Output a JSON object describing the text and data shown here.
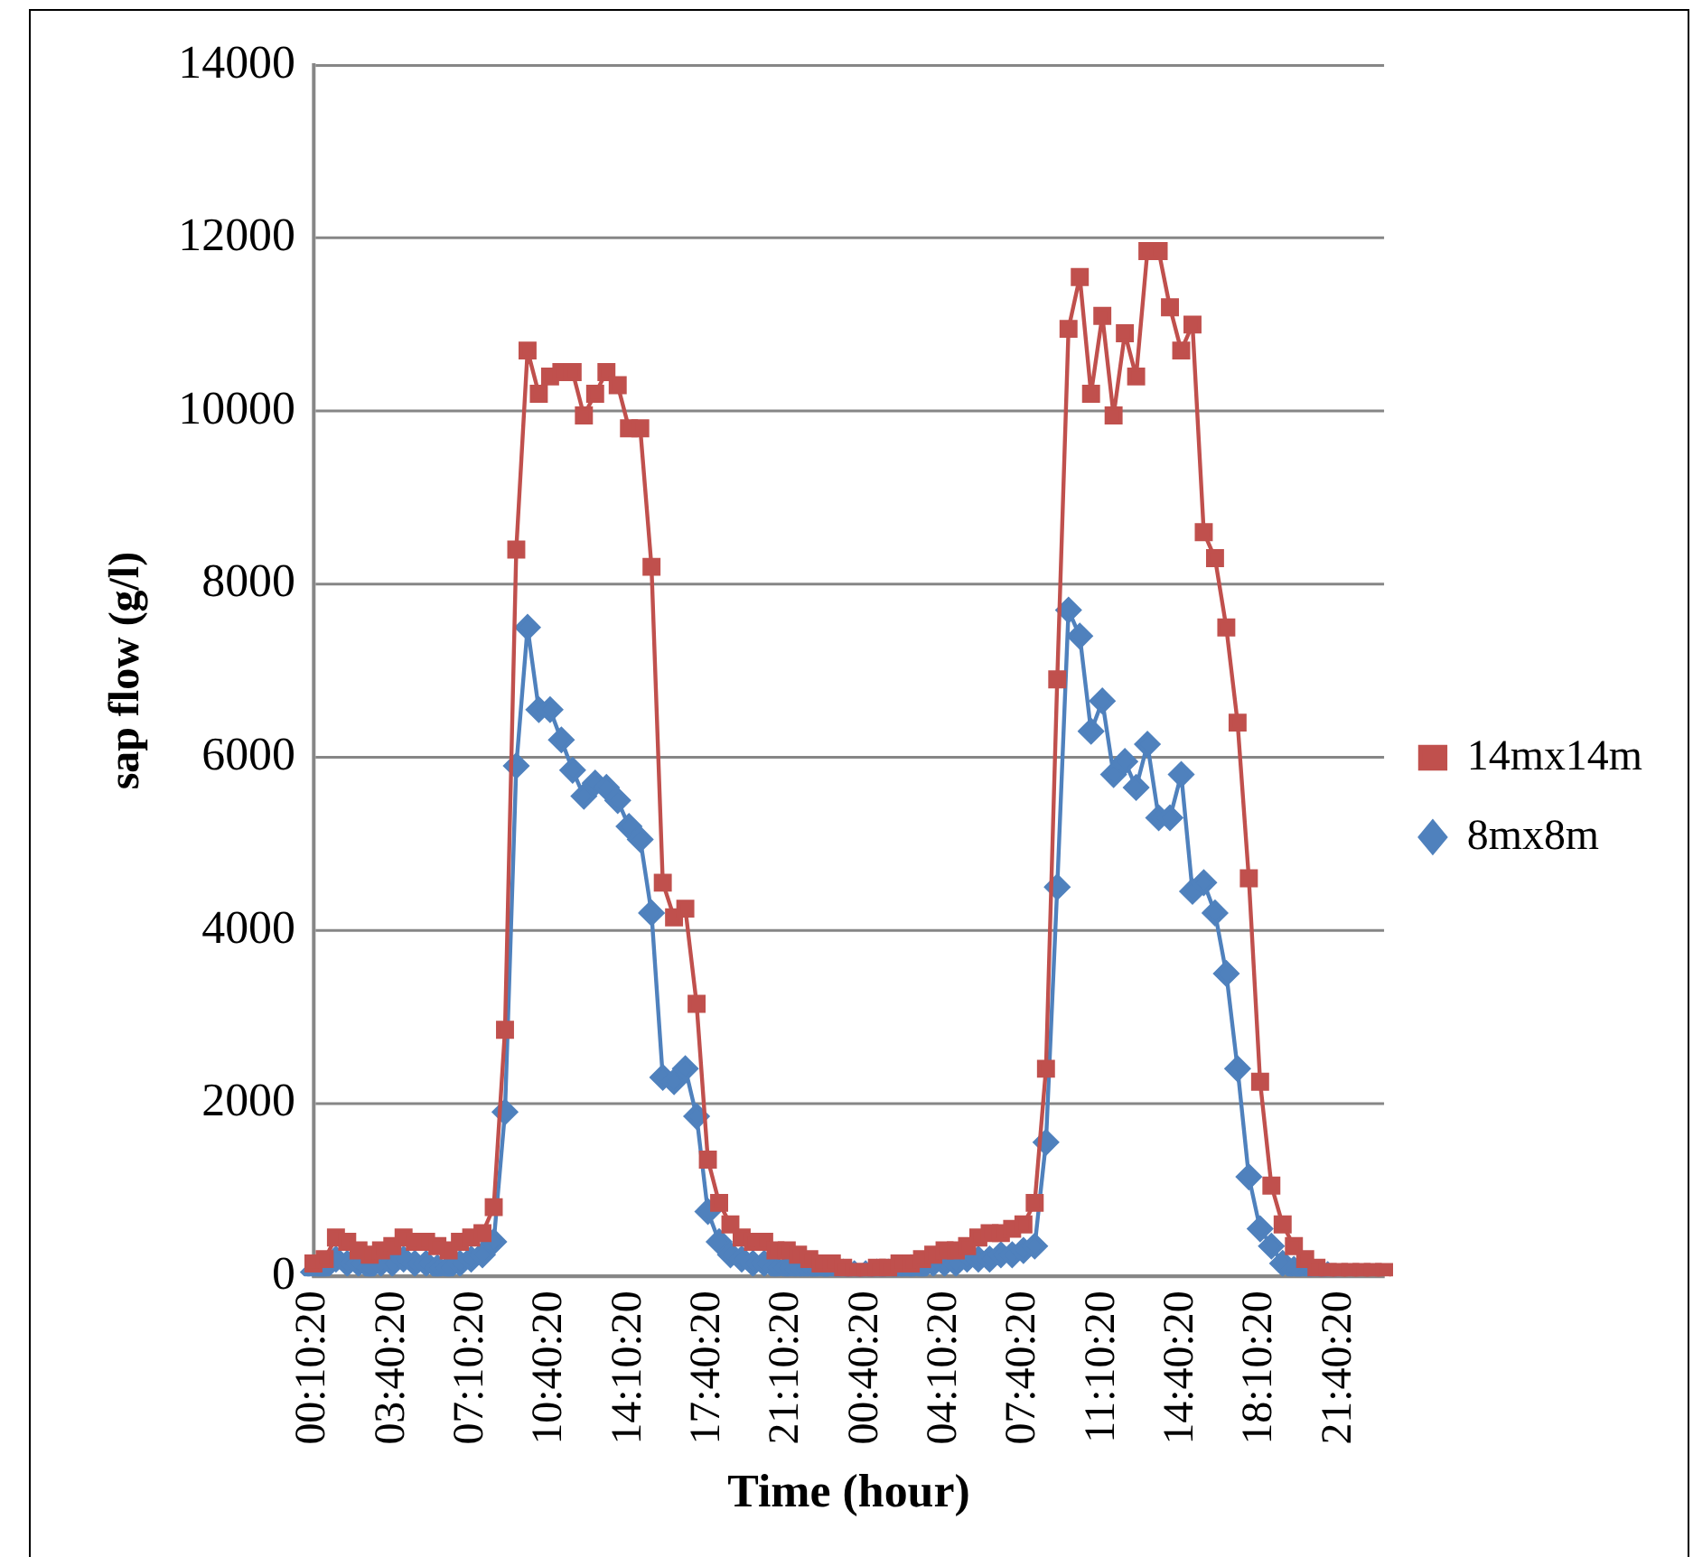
{
  "chart_data": {
    "type": "line",
    "xlabel": "Time (hour)",
    "ylabel": "sap flow (g/l)",
    "categories": [
      "00:10:20",
      null,
      null,
      null,
      null,
      null,
      null,
      "03:40:20",
      null,
      null,
      null,
      null,
      null,
      null,
      "07:10:20",
      null,
      null,
      null,
      null,
      null,
      null,
      "10:40:20",
      null,
      null,
      null,
      null,
      null,
      null,
      "14:10:20",
      null,
      null,
      null,
      null,
      null,
      null,
      "17:40:20",
      null,
      null,
      null,
      null,
      null,
      null,
      "21:10:20",
      null,
      null,
      null,
      null,
      null,
      null,
      "00:40:20",
      null,
      null,
      null,
      null,
      null,
      null,
      "04:10:20",
      null,
      null,
      null,
      null,
      null,
      null,
      "07:40:20",
      null,
      null,
      null,
      null,
      null,
      null,
      "11:10:20",
      null,
      null,
      null,
      null,
      null,
      null,
      "14:40:20",
      null,
      null,
      null,
      null,
      null,
      null,
      "18:10:20",
      null,
      null,
      null,
      null,
      null,
      null,
      "21:40:20",
      null,
      null,
      null,
      null
    ],
    "series": [
      {
        "name": "14mx14m",
        "color": "#c0504d",
        "marker": "square",
        "values": [
          150,
          200,
          450,
          400,
          300,
          250,
          300,
          350,
          450,
          400,
          400,
          350,
          300,
          400,
          450,
          500,
          800,
          2850,
          8400,
          10700,
          10200,
          10400,
          10450,
          10450,
          9950,
          10200,
          10450,
          10300,
          9800,
          9800,
          8200,
          4550,
          4150,
          4250,
          3150,
          1350,
          850,
          600,
          450,
          400,
          400,
          300,
          300,
          250,
          200,
          150,
          150,
          100,
          50,
          50,
          100,
          100,
          150,
          150,
          200,
          250,
          300,
          300,
          350,
          450,
          500,
          500,
          550,
          600,
          850,
          2400,
          6900,
          10950,
          11550,
          10200,
          11100,
          9950,
          10900,
          10400,
          11850,
          11850,
          11200,
          10700,
          11000,
          8600,
          8300,
          7500,
          6400,
          4600,
          2250,
          1050,
          600,
          350,
          200,
          100,
          50,
          50,
          50,
          50,
          50,
          50
        ]
      },
      {
        "name": "8mx8m",
        "color": "#4f81bd",
        "marker": "diamond",
        "values": [
          50,
          100,
          200,
          150,
          150,
          100,
          150,
          150,
          200,
          150,
          150,
          100,
          100,
          150,
          200,
          250,
          400,
          1900,
          5900,
          7500,
          6550,
          6550,
          6200,
          5850,
          5550,
          5700,
          5650,
          5500,
          5200,
          5050,
          4200,
          2300,
          2250,
          2400,
          1850,
          750,
          400,
          250,
          200,
          150,
          150,
          100,
          100,
          80,
          80,
          60,
          50,
          50,
          30,
          30,
          50,
          50,
          80,
          100,
          100,
          150,
          150,
          150,
          200,
          200,
          200,
          250,
          250,
          300,
          350,
          1550,
          4500,
          7700,
          7400,
          6300,
          6650,
          5800,
          5950,
          5650,
          6150,
          5300,
          5300,
          5800,
          4450,
          4550,
          4200,
          3500,
          2400,
          1150,
          550,
          350,
          150,
          80,
          50,
          30,
          20,
          null,
          null,
          null,
          null,
          null
        ]
      }
    ],
    "ylim": [
      0,
      14000
    ],
    "yticks": [
      0,
      2000,
      4000,
      6000,
      8000,
      10000,
      12000,
      14000
    ],
    "grid": "y",
    "legend": "right",
    "line_style": "solid"
  }
}
